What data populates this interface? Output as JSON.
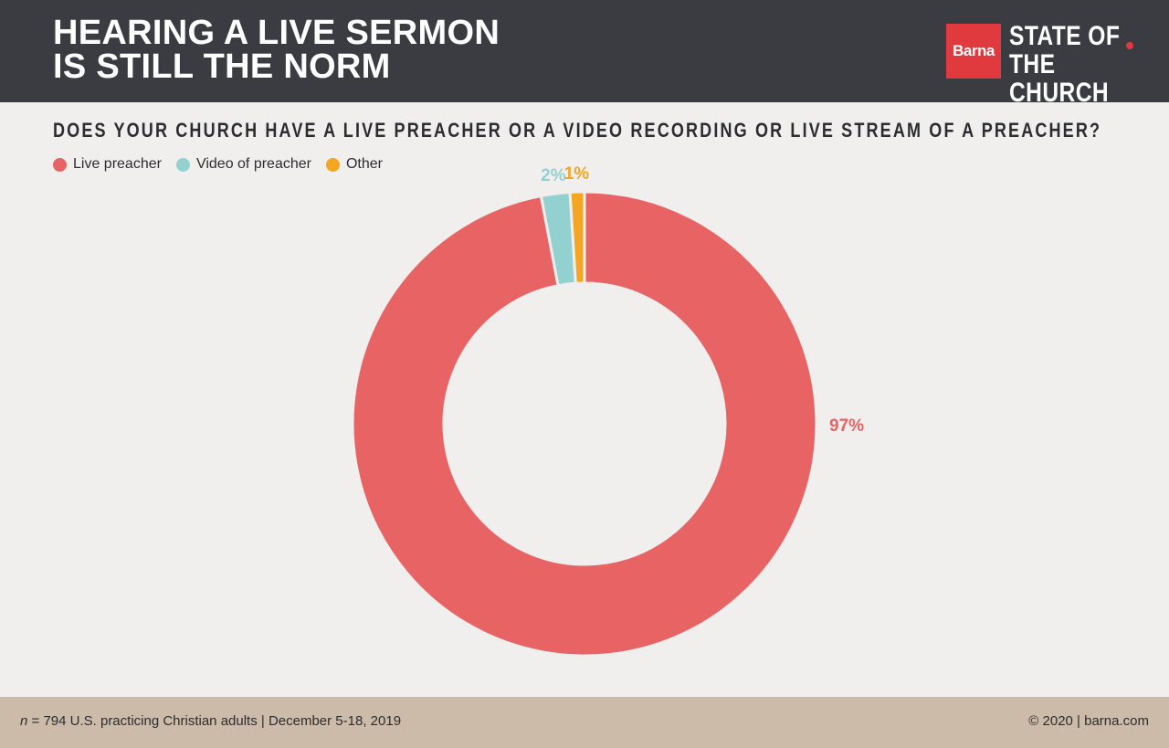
{
  "header": {
    "title_lines": [
      "HEARING A LIVE SERMON",
      "IS STILL THE NORM"
    ],
    "brand_label": "Barna",
    "brand_title_lines": [
      "STATE OF",
      "THE CHURCH"
    ]
  },
  "colors": {
    "header_bg": "#3a3c42",
    "background": "#f1eeee",
    "brand_red": "#e03a3e",
    "footer_bg": "#cdbba9"
  },
  "chart_data": {
    "type": "pie",
    "donut": true,
    "title": "DOES YOUR CHURCH HAVE A LIVE PREACHER OR A VIDEO RECORDING OR LIVE STREAM OF A PREACHER?",
    "legend_position": "top-left",
    "series": [
      {
        "name": "Live preacher",
        "value": 97,
        "label": "97%",
        "color": "#e86363"
      },
      {
        "name": "Video of preacher",
        "value": 2,
        "label": "2%",
        "color": "#93d0d0"
      },
      {
        "name": "Other",
        "value": 1,
        "label": "1%",
        "color": "#f4a521"
      }
    ]
  },
  "footer": {
    "n_symbol": "n",
    "sample_text": " = 794 U.S. practicing Christian adults | December 5-18, 2019",
    "copyright": "© 2020 | barna.com"
  }
}
